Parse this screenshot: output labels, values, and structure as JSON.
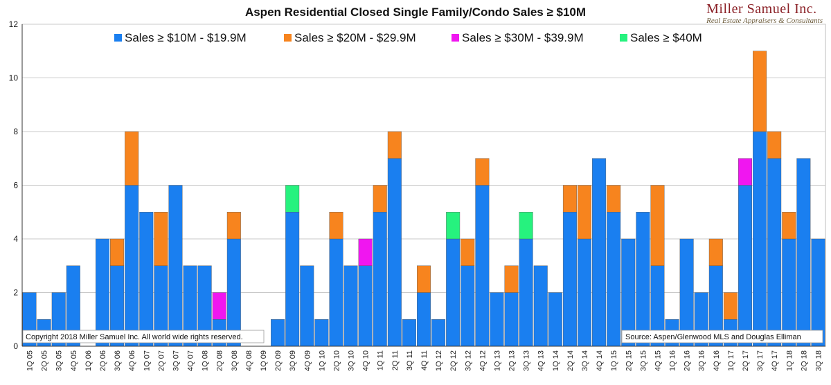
{
  "brand": {
    "name": "Miller Samuel Inc.",
    "tagline": "Real Estate Appraisers & Consultants"
  },
  "chart_data": {
    "type": "bar",
    "stacked": true,
    "title": "Aspen Residential Closed Single Family/Condo Sales ≥ $10M",
    "xlabel": "",
    "ylabel": "",
    "ylim": [
      0,
      12
    ],
    "yticks": [
      0,
      2,
      4,
      6,
      8,
      10,
      12
    ],
    "grid": true,
    "legend_position": "top",
    "categories": [
      "1Q 05",
      "2Q 05",
      "3Q 05",
      "4Q 05",
      "1Q 06",
      "2Q 06",
      "3Q 06",
      "4Q 06",
      "1Q 07",
      "2Q 07",
      "3Q 07",
      "4Q 07",
      "1Q 08",
      "2Q 08",
      "3Q 08",
      "4Q 08",
      "1Q 09",
      "2Q 09",
      "3Q 09",
      "4Q 09",
      "1Q 10",
      "2Q 10",
      "3Q 10",
      "4Q 10",
      "1Q 11",
      "2Q 11",
      "3Q 11",
      "4Q 11",
      "1Q 12",
      "2Q 12",
      "3Q 12",
      "4Q 12",
      "1Q 13",
      "2Q 13",
      "3Q 13",
      "4Q 13",
      "1Q 14",
      "2Q 14",
      "3Q 14",
      "4Q 14",
      "1Q 15",
      "2Q 15",
      "3Q 15",
      "4Q 15",
      "1Q 16",
      "2Q 16",
      "3Q 16",
      "4Q 16",
      "1Q 17",
      "2Q 17",
      "3Q 17",
      "4Q 17",
      "1Q 18",
      "2Q 18",
      "3Q 18"
    ],
    "series": [
      {
        "name": "Sales ≥ $10M - $19.9M",
        "color": "#1a7ff0",
        "values": [
          2,
          1,
          2,
          3,
          0,
          4,
          3,
          6,
          5,
          3,
          6,
          3,
          3,
          1,
          4,
          0,
          0,
          1,
          5,
          3,
          1,
          4,
          3,
          3,
          5,
          7,
          1,
          2,
          1,
          4,
          3,
          6,
          2,
          2,
          4,
          3,
          2,
          5,
          4,
          7,
          5,
          4,
          5,
          3,
          1,
          4,
          2,
          3,
          1,
          6,
          8,
          7,
          4,
          7,
          4
        ]
      },
      {
        "name": "Sales ≥ $20M - $29.9M",
        "color": "#f7841e",
        "values": [
          0,
          0,
          0,
          0,
          0,
          0,
          1,
          2,
          0,
          2,
          0,
          0,
          0,
          0,
          1,
          0,
          0,
          0,
          0,
          0,
          0,
          1,
          0,
          0,
          1,
          1,
          0,
          1,
          0,
          0,
          1,
          1,
          0,
          1,
          0,
          0,
          0,
          1,
          2,
          0,
          1,
          0,
          0,
          3,
          0,
          0,
          0,
          1,
          1,
          0,
          3,
          1,
          1,
          0,
          0
        ]
      },
      {
        "name": "Sales ≥ $30M - $39.9M",
        "color": "#f016f0",
        "values": [
          0,
          0,
          0,
          0,
          0,
          0,
          0,
          0,
          0,
          0,
          0,
          0,
          0,
          1,
          0,
          0,
          0,
          0,
          0,
          0,
          0,
          0,
          0,
          1,
          0,
          0,
          0,
          0,
          0,
          0,
          0,
          0,
          0,
          0,
          0,
          0,
          0,
          0,
          0,
          0,
          0,
          0,
          0,
          0,
          0,
          0,
          0,
          0,
          0,
          1,
          0,
          0,
          0,
          0,
          0
        ]
      },
      {
        "name": "Sales ≥ $40M",
        "color": "#26f27e",
        "values": [
          0,
          0,
          0,
          0,
          0,
          0,
          0,
          0,
          0,
          0,
          0,
          0,
          0,
          0,
          0,
          0,
          0,
          0,
          1,
          0,
          0,
          0,
          0,
          0,
          0,
          0,
          0,
          0,
          0,
          1,
          0,
          0,
          0,
          0,
          1,
          0,
          0,
          0,
          0,
          0,
          0,
          0,
          0,
          0,
          0,
          0,
          0,
          0,
          0,
          0,
          0,
          0,
          0,
          0,
          0
        ]
      }
    ],
    "annotations": {
      "copyright": "Copyright 2018 Miller Samuel Inc.  All world wide rights reserved.",
      "source": "Source: Aspen/Glenwood MLS and Douglas Elliman"
    }
  }
}
